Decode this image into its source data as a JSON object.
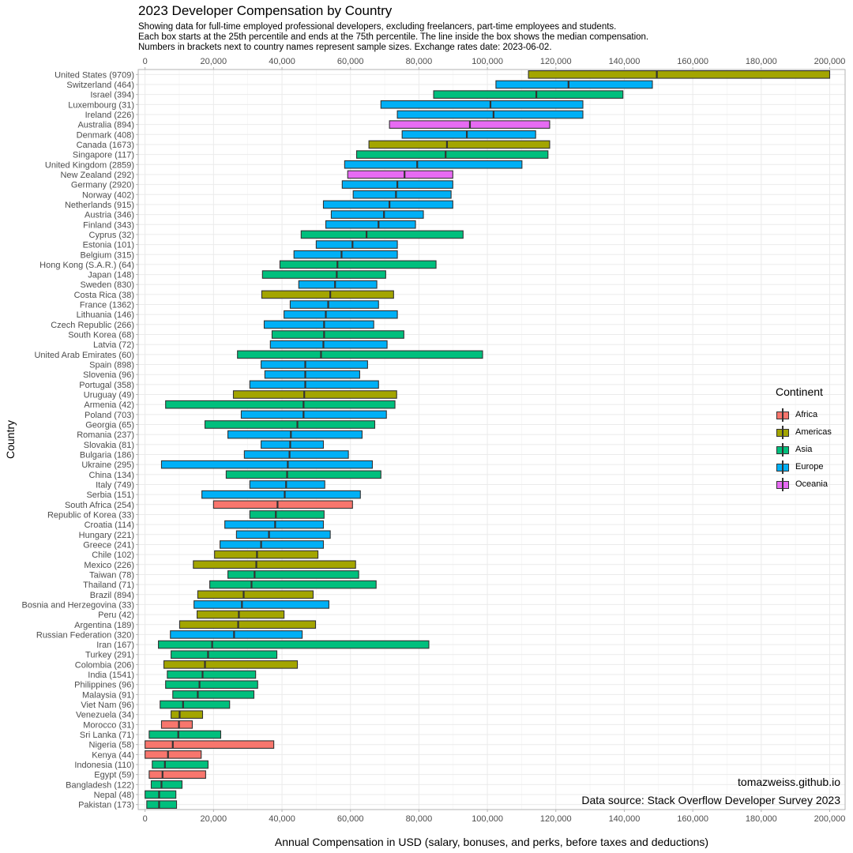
{
  "chart_data": {
    "type": "boxplot",
    "title": "2023 Developer Compensation by Country",
    "subtitle": [
      "Showing data for full-time employed professional developers, excluding freelancers, part-time employees and students.",
      "Each box starts at the 25th percentile and ends at the 75th percentile. The line inside the box shows the median compensation.",
      "Numbers in brackets next to country names represent sample sizes. Exchange rates date: 2023-06-02."
    ],
    "xlabel": "Annual Compensation in USD (salary, bonuses, and perks, before taxes and deductions)",
    "ylabel": "Country",
    "xlim": [
      -2000,
      204500
    ],
    "x_ticks": [
      0,
      20000,
      40000,
      60000,
      80000,
      100000,
      120000,
      140000,
      160000,
      180000,
      200000
    ],
    "x_tick_labels": [
      "0",
      "20,000",
      "40,000",
      "60,000",
      "80,000",
      "100,000",
      "120,000",
      "140,000",
      "160,000",
      "180,000",
      "200,000"
    ],
    "axis_position": "top-and-bottom",
    "grid": true,
    "legend": {
      "title": "Continent",
      "placement": "right",
      "entries": [
        {
          "name": "Africa",
          "color": "#F8766D"
        },
        {
          "name": "Americas",
          "color": "#A3A500"
        },
        {
          "name": "Asia",
          "color": "#00BF7D"
        },
        {
          "name": "Europe",
          "color": "#00B0F6"
        },
        {
          "name": "Oceania",
          "color": "#E76BF3"
        }
      ]
    },
    "annotations": [
      "tomazweiss.github.io",
      "Data source: Stack Overflow Developer Survey 2023"
    ],
    "rows": [
      {
        "label": "United States (9709)",
        "continent": "Americas",
        "q1": 112000,
        "median": 149500,
        "q3": 200000
      },
      {
        "label": "Switzerland (464)",
        "continent": "Europe",
        "q1": 102500,
        "median": 123700,
        "q3": 148200
      },
      {
        "label": "Israel (394)",
        "continent": "Asia",
        "q1": 84300,
        "median": 114300,
        "q3": 139600
      },
      {
        "label": "Luxembourg (31)",
        "continent": "Europe",
        "q1": 68900,
        "median": 100900,
        "q3": 127900
      },
      {
        "label": "Ireland (226)",
        "continent": "Europe",
        "q1": 73700,
        "median": 101800,
        "q3": 127900
      },
      {
        "label": "Australia (894)",
        "continent": "Oceania",
        "q1": 71400,
        "median": 94900,
        "q3": 118200
      },
      {
        "label": "Denmark (408)",
        "continent": "Europe",
        "q1": 75100,
        "median": 94000,
        "q3": 114100
      },
      {
        "label": "Canada (1673)",
        "continent": "Americas",
        "q1": 65400,
        "median": 88200,
        "q3": 118200
      },
      {
        "label": "Singapore (117)",
        "continent": "Asia",
        "q1": 61800,
        "median": 87800,
        "q3": 117700
      },
      {
        "label": "United Kingdom (2859)",
        "continent": "Europe",
        "q1": 58300,
        "median": 79500,
        "q3": 110100
      },
      {
        "label": "New Zealand (292)",
        "continent": "Oceania",
        "q1": 59200,
        "median": 75800,
        "q3": 89900
      },
      {
        "label": "Germany (2920)",
        "continent": "Europe",
        "q1": 57600,
        "median": 73700,
        "q3": 89900
      },
      {
        "label": "Norway (402)",
        "continent": "Europe",
        "q1": 60800,
        "median": 73300,
        "q3": 89400
      },
      {
        "label": "Netherlands (915)",
        "continent": "Europe",
        "q1": 52100,
        "median": 71400,
        "q3": 89900
      },
      {
        "label": "Austria (346)",
        "continent": "Europe",
        "q1": 54400,
        "median": 69800,
        "q3": 81300
      },
      {
        "label": "Finland (343)",
        "continent": "Europe",
        "q1": 52800,
        "median": 68200,
        "q3": 79000
      },
      {
        "label": "Cyprus (32)",
        "continent": "Asia",
        "q1": 45600,
        "median": 64700,
        "q3": 92900
      },
      {
        "label": "Estonia (101)",
        "continent": "Europe",
        "q1": 50000,
        "median": 60600,
        "q3": 73700
      },
      {
        "label": "Belgium (315)",
        "continent": "Europe",
        "q1": 43500,
        "median": 57400,
        "q3": 73700
      },
      {
        "label": "Hong Kong (S.A.R.) (64)",
        "continent": "Asia",
        "q1": 39400,
        "median": 56200,
        "q3": 85000
      },
      {
        "label": "Japan (148)",
        "continent": "Asia",
        "q1": 34300,
        "median": 56000,
        "q3": 70300
      },
      {
        "label": "Sweden (830)",
        "continent": "Europe",
        "q1": 44900,
        "median": 55500,
        "q3": 67700
      },
      {
        "label": "Costa Rica (38)",
        "continent": "Americas",
        "q1": 34100,
        "median": 54100,
        "q3": 72600
      },
      {
        "label": "France (1362)",
        "continent": "Europe",
        "q1": 42400,
        "median": 53500,
        "q3": 68200
      },
      {
        "label": "Lithuania (146)",
        "continent": "Europe",
        "q1": 40600,
        "median": 52800,
        "q3": 73700
      },
      {
        "label": "Czech Republic (266)",
        "continent": "Europe",
        "q1": 34800,
        "median": 52300,
        "q3": 66800
      },
      {
        "label": "South Korea (68)",
        "continent": "Asia",
        "q1": 37100,
        "median": 52300,
        "q3": 75600
      },
      {
        "label": "Latvia (72)",
        "continent": "Europe",
        "q1": 36600,
        "median": 52100,
        "q3": 70700
      },
      {
        "label": "United Arab Emirates (60)",
        "continent": "Asia",
        "q1": 27000,
        "median": 51400,
        "q3": 98600
      },
      {
        "label": "Spain (898)",
        "continent": "Europe",
        "q1": 33900,
        "median": 46800,
        "q3": 65000
      },
      {
        "label": "Slovenia (96)",
        "continent": "Europe",
        "q1": 35000,
        "median": 46800,
        "q3": 62700
      },
      {
        "label": "Portugal (358)",
        "continent": "Europe",
        "q1": 30600,
        "median": 46800,
        "q3": 68200
      },
      {
        "label": "Uruguay (49)",
        "continent": "Americas",
        "q1": 25800,
        "median": 46500,
        "q3": 73500
      },
      {
        "label": "Armenia (42)",
        "continent": "Asia",
        "q1": 6000,
        "median": 46300,
        "q3": 73000
      },
      {
        "label": "Poland (703)",
        "continent": "Europe",
        "q1": 28100,
        "median": 46300,
        "q3": 70500
      },
      {
        "label": "Georgia (65)",
        "continent": "Asia",
        "q1": 17500,
        "median": 44500,
        "q3": 67100
      },
      {
        "label": "Romania (237)",
        "continent": "Europe",
        "q1": 24200,
        "median": 42600,
        "q3": 63400
      },
      {
        "label": "Slovakia (81)",
        "continent": "Europe",
        "q1": 33900,
        "median": 42400,
        "q3": 52100
      },
      {
        "label": "Bulgaria (186)",
        "continent": "Europe",
        "q1": 29000,
        "median": 42200,
        "q3": 59400
      },
      {
        "label": "Ukraine (295)",
        "continent": "Europe",
        "q1": 4800,
        "median": 41700,
        "q3": 66400
      },
      {
        "label": "China (134)",
        "continent": "Asia",
        "q1": 23700,
        "median": 41500,
        "q3": 68900
      },
      {
        "label": "Italy (749)",
        "continent": "Europe",
        "q1": 30600,
        "median": 41200,
        "q3": 52500
      },
      {
        "label": "Serbia (151)",
        "continent": "Europe",
        "q1": 16600,
        "median": 40800,
        "q3": 62900
      },
      {
        "label": "South Africa (254)",
        "continent": "Africa",
        "q1": 20000,
        "median": 38700,
        "q3": 60600
      },
      {
        "label": "Republic of Korea (33)",
        "continent": "Asia",
        "q1": 30600,
        "median": 38200,
        "q3": 52300
      },
      {
        "label": "Croatia (114)",
        "continent": "Europe",
        "q1": 23300,
        "median": 38000,
        "q3": 52100
      },
      {
        "label": "Hungary (221)",
        "continent": "Europe",
        "q1": 26700,
        "median": 36200,
        "q3": 54100
      },
      {
        "label": "Greece (241)",
        "continent": "Europe",
        "q1": 21900,
        "median": 33900,
        "q3": 52100
      },
      {
        "label": "Chile (102)",
        "continent": "Americas",
        "q1": 20300,
        "median": 32700,
        "q3": 50500
      },
      {
        "label": "Mexico (226)",
        "continent": "Americas",
        "q1": 14100,
        "median": 32500,
        "q3": 61500
      },
      {
        "label": "Taiwan (78)",
        "continent": "Asia",
        "q1": 24200,
        "median": 32000,
        "q3": 62400
      },
      {
        "label": "Thailand (71)",
        "continent": "Asia",
        "q1": 18900,
        "median": 31100,
        "q3": 67500
      },
      {
        "label": "Brazil (894)",
        "continent": "Americas",
        "q1": 15400,
        "median": 28800,
        "q3": 49100
      },
      {
        "label": "Bosnia and Herzegovina (33)",
        "continent": "Europe",
        "q1": 14300,
        "median": 28300,
        "q3": 53700
      },
      {
        "label": "Peru (42)",
        "continent": "Americas",
        "q1": 15200,
        "median": 27400,
        "q3": 40600
      },
      {
        "label": "Argentina (189)",
        "continent": "Americas",
        "q1": 10100,
        "median": 27200,
        "q3": 49800
      },
      {
        "label": "Russian Federation (320)",
        "continent": "Europe",
        "q1": 7400,
        "median": 26000,
        "q3": 45900
      },
      {
        "label": "Iran (167)",
        "continent": "Asia",
        "q1": 3900,
        "median": 19600,
        "q3": 82900
      },
      {
        "label": "Turkey (291)",
        "continent": "Asia",
        "q1": 7600,
        "median": 18400,
        "q3": 38500
      },
      {
        "label": "Colombia (206)",
        "continent": "Americas",
        "q1": 5500,
        "median": 17500,
        "q3": 44500
      },
      {
        "label": "India (1541)",
        "continent": "Asia",
        "q1": 6500,
        "median": 16800,
        "q3": 32300
      },
      {
        "label": "Philippines (96)",
        "continent": "Asia",
        "q1": 6000,
        "median": 15900,
        "q3": 32900
      },
      {
        "label": "Malaysia (91)",
        "continent": "Asia",
        "q1": 8100,
        "median": 15400,
        "q3": 31800
      },
      {
        "label": "Viet Nam (96)",
        "continent": "Asia",
        "q1": 4400,
        "median": 11100,
        "q3": 24700
      },
      {
        "label": "Venezuela (34)",
        "continent": "Americas",
        "q1": 7600,
        "median": 10100,
        "q3": 16800
      },
      {
        "label": "Morocco (31)",
        "continent": "Africa",
        "q1": 4800,
        "median": 9900,
        "q3": 13800
      },
      {
        "label": "Sri Lanka (71)",
        "continent": "Asia",
        "q1": 1200,
        "median": 9700,
        "q3": 22100
      },
      {
        "label": "Nigeria (58)",
        "continent": "Africa",
        "q1": 0,
        "median": 8100,
        "q3": 37600
      },
      {
        "label": "Kenya (44)",
        "continent": "Africa",
        "q1": 0,
        "median": 6700,
        "q3": 16400
      },
      {
        "label": "Indonesia (110)",
        "continent": "Asia",
        "q1": 2100,
        "median": 5800,
        "q3": 18400
      },
      {
        "label": "Egypt (59)",
        "continent": "Africa",
        "q1": 1200,
        "median": 5100,
        "q3": 17700
      },
      {
        "label": "Bangladesh (122)",
        "continent": "Asia",
        "q1": 1800,
        "median": 4800,
        "q3": 10800
      },
      {
        "label": "Nepal (48)",
        "continent": "Asia",
        "q1": 0,
        "median": 4100,
        "q3": 9000
      },
      {
        "label": "Pakistan (173)",
        "continent": "Asia",
        "q1": 500,
        "median": 4100,
        "q3": 9200
      }
    ]
  }
}
